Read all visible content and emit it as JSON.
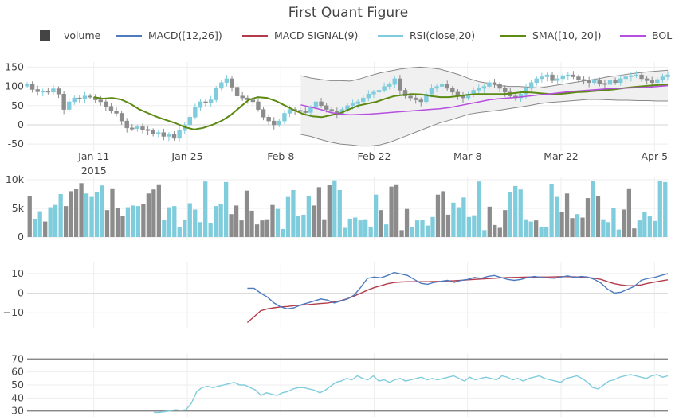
{
  "chart_data": {
    "type": "candlestick",
    "title": "First Quant Figure",
    "colors": {
      "increasing": "#7fccdc",
      "decreasing": "#8c8c8c",
      "macd": "#4e7bc0",
      "signal": "#b23b4c",
      "rsi": "#7fccdc",
      "sma": "#5c8a12",
      "bollinger_mid": "#b64ee0",
      "bollinger_band": "#888888",
      "volume_legend": "#444444"
    },
    "legend": [
      {
        "name": "volume",
        "symbol": "square"
      },
      {
        "name": "MACD([12,26])",
        "symbol": "line",
        "color": "#4e7bc0"
      },
      {
        "name": "MACD SIGNAL(9)",
        "symbol": "line",
        "color": "#b23b4c"
      },
      {
        "name": "RSI(close,20)",
        "symbol": "line",
        "color": "#7fccdc"
      },
      {
        "name": "SMA([10, 20])",
        "symbol": "line",
        "color": "#5c8a12"
      },
      {
        "name": "BOL",
        "symbol": "line",
        "color": "#b64ee0"
      }
    ],
    "x_axis": {
      "start_date": "2015-01-01",
      "days": 97,
      "tick_days": [
        10,
        24,
        38,
        52,
        66,
        80,
        94
      ],
      "tick_labels": [
        "Jan 11",
        "Jan 25",
        "Feb 8",
        "Feb 22",
        "Mar 8",
        "Mar 22",
        "Apr 5"
      ],
      "year_label": "2015"
    },
    "price_panel": {
      "ylim": [
        -60,
        155
      ],
      "ticks": [
        150,
        100,
        50,
        0,
        -50
      ],
      "closes": [
        105,
        92,
        86,
        88,
        85,
        94,
        80,
        40,
        60,
        70,
        68,
        75,
        72,
        65,
        60,
        48,
        36,
        30,
        10,
        -8,
        -10,
        -5,
        -12,
        -15,
        -24,
        -20,
        -30,
        -25,
        -35,
        -15,
        0,
        20,
        45,
        60,
        58,
        65,
        95,
        110,
        120,
        98,
        75,
        70,
        65,
        60,
        40,
        20,
        10,
        0,
        10,
        30,
        40,
        38,
        35,
        32,
        45,
        60,
        50,
        40,
        35,
        30,
        40,
        50,
        55,
        60,
        70,
        80,
        85,
        90,
        100,
        105,
        120,
        90,
        75,
        70,
        65,
        60,
        80,
        95,
        100,
        105,
        95,
        85,
        75,
        70,
        80,
        90,
        95,
        100,
        110,
        105,
        95,
        85,
        75,
        70,
        80,
        95,
        110,
        120,
        125,
        130,
        115,
        120,
        128,
        130,
        125,
        118,
        115,
        110,
        115,
        108,
        105,
        115,
        110,
        120,
        125,
        128,
        130,
        120,
        115,
        110,
        118,
        125,
        130
      ],
      "sma": [
        72,
        68,
        70,
        66,
        55,
        40,
        30,
        20,
        12,
        4,
        -6,
        -12,
        -8,
        0,
        10,
        25,
        45,
        65,
        72,
        70,
        62,
        50,
        38,
        28,
        22,
        20,
        25,
        30,
        40,
        50,
        55,
        60,
        68,
        75,
        78,
        80,
        79,
        75,
        72,
        72,
        75,
        78,
        80,
        80,
        80,
        80,
        82,
        85,
        84,
        82,
        80,
        80,
        82,
        85,
        86,
        88,
        90,
        92,
        95,
        98,
        100,
        102,
        104,
        105
      ],
      "bollinger_mid": [
        52,
        46,
        40,
        32,
        28,
        26,
        27,
        28,
        30,
        32,
        34,
        36,
        38,
        40,
        42,
        45,
        50,
        55,
        60,
        65,
        68,
        70,
        72,
        75,
        78,
        80,
        83,
        86,
        88,
        90,
        92,
        94,
        95,
        96,
        97,
        98,
        100,
        102
      ],
      "bollinger_upper": [
        128,
        122,
        118,
        115,
        115,
        114,
        120,
        128,
        135,
        140,
        145,
        148,
        150,
        148,
        145,
        138,
        130,
        120,
        112,
        108,
        102,
        100,
        100,
        98,
        96,
        100,
        104,
        108,
        112,
        116,
        120,
        125,
        128,
        132,
        135,
        138,
        140,
        142
      ],
      "bollinger_lower": [
        -25,
        -30,
        -38,
        -45,
        -50,
        -52,
        -55,
        -55,
        -52,
        -45,
        -35,
        -25,
        -15,
        -5,
        5,
        12,
        20,
        28,
        32,
        35,
        38,
        42,
        46,
        50,
        55,
        58,
        60,
        62,
        64,
        66,
        66,
        65,
        64,
        64,
        63,
        63,
        62,
        62
      ]
    },
    "volume_panel": {
      "ylim": [
        0,
        10000
      ],
      "ticks": [
        0,
        5000,
        10000
      ],
      "tick_labels": [
        "0",
        "5k",
        "10k"
      ],
      "values": [
        7200,
        3200,
        4500,
        2700,
        5200,
        5600,
        7500,
        5400,
        8000,
        8400,
        9400,
        7600,
        7000,
        7800,
        9000,
        4700,
        8500,
        5000,
        3700,
        5200,
        5500,
        5400,
        5800,
        7600,
        8300,
        9200,
        3000,
        5200,
        5400,
        1700,
        3000,
        5900,
        4800,
        2600,
        9700,
        2500,
        5400,
        5800,
        9600,
        4000,
        5500,
        2900,
        8100,
        4600,
        2200,
        2900,
        3100,
        5600,
        4900,
        1400,
        7000,
        8200,
        3700,
        3900,
        7100,
        5500,
        8700,
        3100,
        9100,
        9900,
        8200,
        1600,
        3200,
        3400,
        2900,
        3100,
        1800,
        7400,
        4700,
        2200,
        8800,
        9200,
        1200,
        4900,
        1800,
        2900,
        3000,
        2000,
        3500,
        7400,
        8000,
        3900,
        6000,
        5200,
        6900,
        3500,
        3800,
        9700,
        1200,
        5300,
        2100,
        1600,
        4700,
        7800,
        8900,
        8300,
        3100,
        2700,
        2900,
        1700,
        1800,
        9300,
        7000,
        4400,
        7600,
        3300,
        4000,
        3400,
        6800,
        9800,
        7100,
        3100,
        2600,
        5000,
        1300,
        4800,
        8500,
        1500,
        2900,
        4400,
        3600,
        2800,
        9800,
        9600
      ],
      "directions": [
        0,
        1,
        1,
        0,
        1,
        1,
        1,
        0,
        0,
        0,
        0,
        1,
        1,
        1,
        1,
        0,
        0,
        0,
        0,
        1,
        1,
        1,
        0,
        0,
        0,
        0,
        1,
        1,
        1,
        1,
        1,
        1,
        1,
        1,
        1,
        1,
        1,
        1,
        1,
        0,
        0,
        0,
        0,
        0,
        0,
        0,
        0,
        0,
        1,
        1,
        1,
        1,
        1,
        1,
        1,
        0,
        0,
        0,
        0,
        1,
        1,
        1,
        1,
        1,
        1,
        1,
        1,
        1,
        0,
        1,
        0,
        0,
        0,
        0,
        1,
        1,
        1,
        1,
        1,
        0,
        0,
        0,
        1,
        1,
        1,
        1,
        1,
        1,
        1,
        0,
        0,
        0,
        0,
        1,
        1,
        1,
        1,
        1,
        0,
        1,
        1,
        1,
        1,
        0,
        0,
        0,
        1,
        0,
        0,
        1,
        0,
        1,
        1,
        1,
        1,
        0,
        0,
        0,
        1,
        1,
        1,
        1,
        1,
        1
      ]
    },
    "macd_panel": {
      "ylim": [
        -16,
        14
      ],
      "ticks": [
        10,
        0,
        -10
      ],
      "tick_labels": [
        "10",
        "0",
        "−10"
      ],
      "start_day": 33,
      "macd": [
        2.5,
        2.5,
        0,
        -2,
        -5,
        -7,
        -8,
        -7.5,
        -6,
        -5,
        -4,
        -3,
        -3.5,
        -5,
        -4,
        -3,
        -1,
        3,
        7.5,
        8.2,
        7.8,
        9,
        10.5,
        9.8,
        9,
        7,
        5,
        4.5,
        5.5,
        6,
        6.5,
        5.5,
        6.5,
        7,
        8,
        7.5,
        8.5,
        9,
        8,
        7,
        6.5,
        7,
        8,
        8.5,
        8,
        7.8,
        7.6,
        8.2,
        8.8,
        8,
        8.5,
        8.2,
        7,
        5,
        2,
        0,
        0.5,
        2,
        3.5,
        6.5,
        7.5,
        8,
        9,
        10
      ],
      "signal": [
        -15,
        -12,
        -9,
        -8,
        -7.5,
        -7,
        -6.8,
        -6.4,
        -6.1,
        -5.9,
        -5.6,
        -5.3,
        -5,
        -4.5,
        -3.8,
        -2.8,
        -1.5,
        0,
        1.5,
        2.8,
        3.8,
        4.8,
        5.4,
        5.7,
        5.8,
        5.8,
        5.8,
        5.8,
        5.9,
        6,
        6.2,
        6.3,
        6.5,
        6.8,
        7,
        7.2,
        7.4,
        7.6,
        7.8,
        7.9,
        8,
        8.1,
        8.2,
        8.2,
        8.2,
        8.2,
        8.3,
        8.4,
        8.4,
        8.3,
        8.2,
        8,
        7.6,
        7,
        5.8,
        4.8,
        4.2,
        3.8,
        3.8,
        4.2,
        5,
        5.6,
        6.2,
        6.8
      ]
    },
    "rsi_panel": {
      "ylim": [
        28,
        72
      ],
      "ticks": [
        70,
        60,
        50,
        40,
        30
      ],
      "start_day": 19,
      "values": [
        29,
        29,
        29.5,
        30,
        31,
        30.5,
        31,
        36,
        45,
        48,
        49,
        48,
        49,
        50,
        51,
        52,
        50,
        50,
        48,
        46,
        42,
        44,
        43,
        42,
        44,
        45,
        47,
        48,
        48,
        47,
        46,
        44,
        46,
        49,
        52,
        53,
        55,
        54,
        57,
        55,
        54,
        57,
        53,
        54,
        52,
        54,
        55,
        53,
        54,
        55,
        56,
        54,
        55,
        54,
        55,
        56,
        57,
        55,
        53,
        56,
        54,
        55,
        56,
        55,
        54,
        57,
        56,
        54,
        55,
        53,
        55,
        56,
        57,
        55,
        54,
        53,
        52,
        55,
        56,
        57,
        55,
        52,
        48,
        47,
        50,
        53,
        54,
        56,
        57,
        58,
        57,
        56,
        55,
        57,
        58,
        56,
        57
      ]
    }
  }
}
